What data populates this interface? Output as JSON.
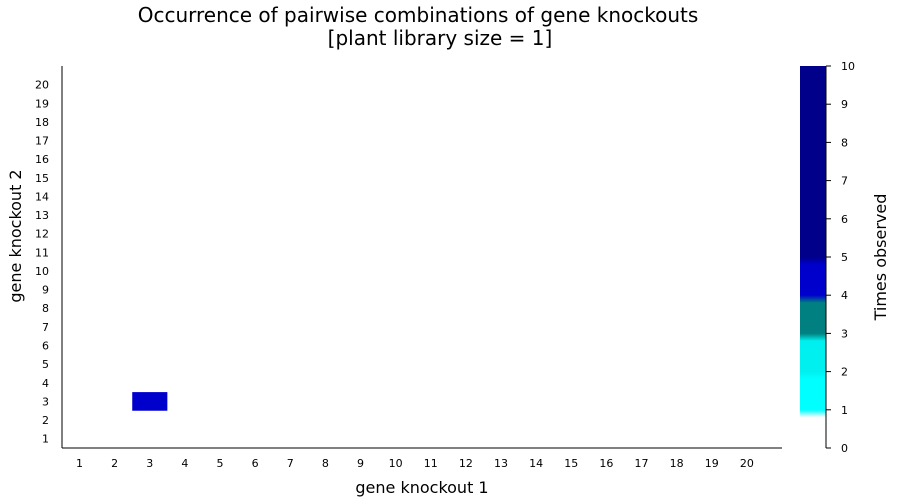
{
  "chart_data": {
    "type": "heatmap",
    "title": "Occurrence of pairwise combinations of gene knockouts",
    "subtitle": "[plant library size = 1]",
    "xlabel": "gene knockout 1",
    "ylabel": "gene knockout 2",
    "x_categories": [
      "1",
      "2",
      "3",
      "4",
      "5",
      "6",
      "7",
      "8",
      "9",
      "10",
      "11",
      "12",
      "13",
      "14",
      "15",
      "16",
      "17",
      "18",
      "19",
      "20"
    ],
    "y_categories": [
      "1",
      "2",
      "3",
      "4",
      "5",
      "6",
      "7",
      "8",
      "9",
      "10",
      "11",
      "12",
      "13",
      "14",
      "15",
      "16",
      "17",
      "18",
      "19",
      "20"
    ],
    "cells": [
      {
        "x": 3,
        "y": 3,
        "value": 4
      }
    ],
    "colorbar": {
      "label": "Times observed",
      "range": [
        0,
        10
      ],
      "ticks": [
        "0",
        "1",
        "2",
        "3",
        "4",
        "5",
        "6",
        "7",
        "8",
        "9",
        "10"
      ],
      "stops": [
        {
          "value": 0,
          "color": "#ffffff"
        },
        {
          "value": 1,
          "color": "#00ffff"
        },
        {
          "value": 2,
          "color": "#00f0f0"
        },
        {
          "value": 3,
          "color": "#008080"
        },
        {
          "value": 4,
          "color": "#0000cd"
        },
        {
          "value": 5,
          "color": "#00008b"
        },
        {
          "value": 10,
          "color": "#00008b"
        }
      ]
    },
    "grid": false,
    "legend": "right"
  }
}
